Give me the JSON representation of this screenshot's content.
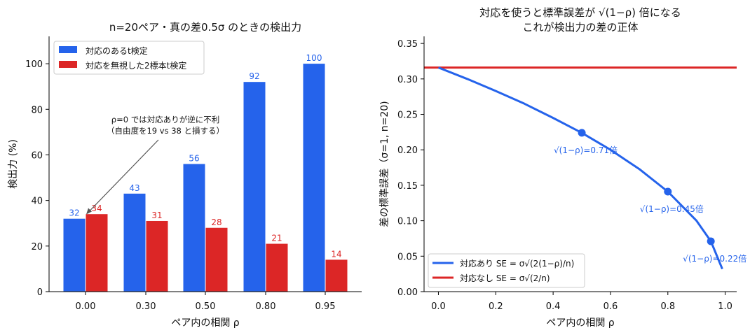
{
  "chart_data": [
    {
      "type": "bar",
      "title": "n=20ペア・真の差0.5σ のときの検出力",
      "xlabel": "ペア内の相関 ρ",
      "ylabel": "検出力 (%)",
      "categories": [
        "0.00",
        "0.30",
        "0.50",
        "0.80",
        "0.95"
      ],
      "ylim": [
        0,
        112
      ],
      "yticks": [
        "0",
        "20",
        "40",
        "60",
        "80",
        "100"
      ],
      "series": [
        {
          "name": "対応のあるt検定",
          "color": "#2563eb",
          "values": [
            32,
            43,
            56,
            92,
            100
          ]
        },
        {
          "name": "対応を無視した2標本t検定",
          "color": "#dc2626",
          "values": [
            34,
            31,
            28,
            21,
            14
          ]
        }
      ],
      "legend": "top-left",
      "grid": false,
      "annotation": {
        "line1": "ρ=0 では対応ありが逆に不利",
        "line2": "（自由度を19 vs 38 と損する）",
        "target_category": "0.00",
        "target_value": 33
      }
    },
    {
      "type": "line",
      "title_line1": "対応を使うと標準誤差が √(1−ρ) 倍になる",
      "title_line2": "これが検出力の差の正体",
      "xlabel": "ペア内の相関 ρ",
      "ylabel": "差の標準誤差（σ=1, n=20)",
      "xlim": [
        -0.05,
        1.04
      ],
      "ylim": [
        0,
        0.36
      ],
      "xticks": [
        "0.0",
        "0.2",
        "0.4",
        "0.6",
        "0.8",
        "1.0"
      ],
      "yticks": [
        "0.00",
        "0.05",
        "0.10",
        "0.15",
        "0.20",
        "0.25",
        "0.30",
        "0.35"
      ],
      "series": [
        {
          "name": "対応あり SE = σ√(2(1−ρ)/n)",
          "color": "#2563eb",
          "x": [
            0.0,
            0.1,
            0.2,
            0.3,
            0.4,
            0.5,
            0.6,
            0.7,
            0.8,
            0.9,
            0.95,
            0.99
          ],
          "y": [
            0.316,
            0.3,
            0.283,
            0.265,
            0.245,
            0.224,
            0.2,
            0.173,
            0.141,
            0.1,
            0.071,
            0.032
          ]
        },
        {
          "name": "対応なし SE = σ√(2/n)",
          "color": "#dc2626",
          "x": [
            -0.05,
            1.04
          ],
          "y": [
            0.316,
            0.316
          ]
        }
      ],
      "points": [
        {
          "x": 0.5,
          "y": 0.224,
          "label": "√(1−ρ)=0.71倍"
        },
        {
          "x": 0.8,
          "y": 0.141,
          "label": "√(1−ρ)=0.45倍"
        },
        {
          "x": 0.95,
          "y": 0.071,
          "label": "√(1−ρ)=0.22倍"
        }
      ],
      "legend": "bottom-left",
      "grid": false
    }
  ]
}
